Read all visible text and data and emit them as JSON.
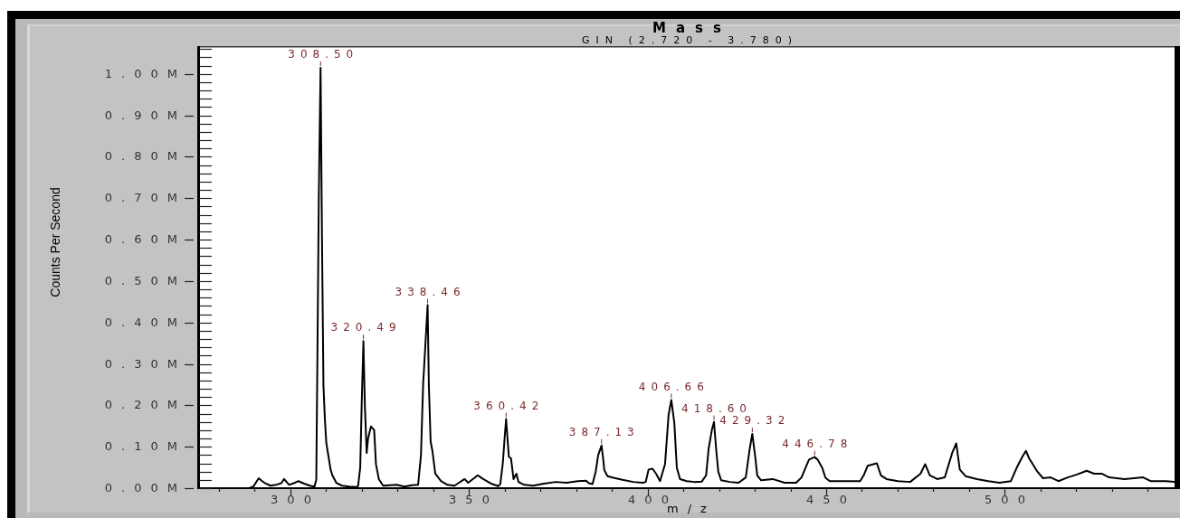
{
  "chart_data": {
    "type": "line",
    "title": "Mass",
    "subtitle": "GIN (2.720 - 3.780)",
    "xlabel": "m/z",
    "ylabel": "Counts Per Second",
    "x": [
      288.5,
      289.7,
      291.2,
      292.0,
      292.8,
      294.5,
      296.0,
      297.5,
      298.3,
      299.7,
      301.0,
      302.3,
      303.9,
      305.5,
      306.8,
      307.3,
      307.6,
      308.0,
      308.5,
      308.9,
      309.3,
      309.7,
      310.1,
      310.8,
      311.3,
      311.8,
      312.9,
      314.5,
      316.5,
      318.5,
      319.0,
      319.6,
      320.0,
      320.49,
      320.9,
      321.4,
      321.8,
      322.6,
      323.5,
      324.0,
      324.8,
      326.0,
      329.8,
      332.0,
      334.0,
      335.8,
      336.6,
      337.2,
      338.46,
      338.8,
      339.3,
      339.8,
      340.6,
      342.2,
      344.0,
      346.0,
      348.8,
      349.8,
      352.5,
      354.0,
      356.2,
      358.3,
      358.8,
      359.5,
      360.0,
      360.42,
      360.9,
      361.2,
      361.8,
      362.5,
      363.3,
      363.9,
      365.5,
      368.0,
      371.0,
      374.3,
      377.3,
      380.5,
      382.8,
      383.6,
      384.6,
      385.5,
      386.2,
      387.13,
      387.6,
      387.9,
      388.8,
      390.5,
      393.0,
      396.0,
      398.7,
      399.5,
      400.3,
      401.4,
      402.4,
      403.5,
      404.9,
      405.9,
      406.66,
      407.5,
      408.2,
      409.1,
      411.0,
      413.1,
      415.2,
      416.4,
      417.1,
      418.0,
      418.6,
      419.2,
      419.8,
      420.6,
      423.0,
      425.5,
      427.5,
      428.6,
      429.32,
      430.2,
      430.7,
      431.8,
      435.0,
      438.4,
      441.6,
      443.1,
      444.2,
      445.2,
      446.78,
      447.6,
      448.9,
      449.8,
      451.0,
      455.3,
      459.5,
      460.5,
      461.6,
      463.2,
      464.2,
      465.3,
      466.9,
      470.1,
      473.5,
      476.4,
      477.7,
      479.0,
      481.1,
      483.2,
      485.3,
      486.4,
      487.4,
      489.0,
      492.2,
      495.4,
      498.5,
      501.7,
      503.3,
      504.9,
      505.9,
      506.8,
      508.1,
      509.1,
      510.7,
      512.8,
      515.0,
      517.6,
      520.2,
      522.9,
      525.0,
      527.1,
      529.2,
      533.5,
      538.7,
      540.8,
      545.1,
      547.5
    ],
    "series": [
      {
        "color": "#000000",
        "values": [
          0,
          4000,
          24000,
          18000,
          13000,
          6000,
          8000,
          12000,
          22000,
          8000,
          12000,
          17000,
          11000,
          6000,
          4000,
          20000,
          300000,
          700000,
          1015000,
          600000,
          250000,
          167000,
          110000,
          72000,
          45000,
          31000,
          13000,
          6000,
          4000,
          3000,
          5000,
          50000,
          200000,
          355000,
          200000,
          85000,
          120000,
          149000,
          140000,
          58000,
          22000,
          6000,
          8000,
          4000,
          7000,
          8000,
          80000,
          250000,
          442000,
          250000,
          113000,
          90000,
          35000,
          17000,
          8000,
          6000,
          22000,
          13000,
          31000,
          22000,
          11000,
          5000,
          10000,
          60000,
          120000,
          167000,
          110000,
          76000,
          72000,
          22000,
          35000,
          15000,
          8000,
          6000,
          11000,
          15000,
          13000,
          17000,
          18000,
          12000,
          10000,
          40000,
          80000,
          103000,
          70000,
          44000,
          29000,
          25000,
          20000,
          15000,
          13000,
          15000,
          45000,
          47000,
          35000,
          17000,
          58000,
          177000,
          213000,
          158000,
          49000,
          22000,
          17000,
          15000,
          16000,
          31000,
          95000,
          140000,
          160000,
          95000,
          40000,
          19000,
          15000,
          13000,
          26000,
          95000,
          131000,
          72000,
          31000,
          19000,
          22000,
          13000,
          13000,
          26000,
          49000,
          69000,
          75000,
          69000,
          49000,
          25000,
          17000,
          17000,
          17000,
          31000,
          54000,
          58000,
          60000,
          31000,
          22000,
          17000,
          15000,
          35000,
          58000,
          31000,
          22000,
          26000,
          86000,
          108000,
          45000,
          29000,
          22000,
          17000,
          13000,
          17000,
          49000,
          76000,
          90000,
          72000,
          54000,
          40000,
          24000,
          26000,
          17000,
          26000,
          33000,
          42000,
          35000,
          35000,
          26000,
          22000,
          26000,
          17000,
          17000,
          15000
        ]
      }
    ],
    "xlim": [
      274.5,
      547.5
    ],
    "ylim": [
      0,
      1065000
    ],
    "xticks": [
      {
        "value": 280,
        "label": null
      },
      {
        "value": 290,
        "label": null
      },
      300,
      {
        "value": 310,
        "label": null
      },
      {
        "value": 320,
        "label": null
      },
      {
        "value": 330,
        "label": null
      },
      {
        "value": 340,
        "label": null
      },
      350,
      {
        "value": 360,
        "label": null
      },
      {
        "value": 370,
        "label": null
      },
      {
        "value": 380,
        "label": null
      },
      {
        "value": 390,
        "label": null
      },
      400,
      {
        "value": 410,
        "label": null
      },
      {
        "value": 420,
        "label": null
      },
      {
        "value": 430,
        "label": null
      },
      {
        "value": 440,
        "label": null
      },
      450,
      {
        "value": 460,
        "label": null
      },
      {
        "value": 470,
        "label": null
      },
      {
        "value": 480,
        "label": null
      },
      {
        "value": 490,
        "label": null
      },
      500,
      {
        "value": 510,
        "label": null
      },
      {
        "value": 520,
        "label": null
      },
      {
        "value": 530,
        "label": null
      },
      {
        "value": 540,
        "label": null
      }
    ],
    "yticks": [
      {
        "value": 0,
        "label": "0.00M"
      },
      {
        "value": 20000,
        "label": null
      },
      {
        "value": 40000,
        "label": null
      },
      {
        "value": 60000,
        "label": null
      },
      {
        "value": 80000,
        "label": null
      },
      {
        "value": 100000,
        "label": "0.10M"
      },
      {
        "value": 120000,
        "label": null
      },
      {
        "value": 140000,
        "label": null
      },
      {
        "value": 160000,
        "label": null
      },
      {
        "value": 180000,
        "label": null
      },
      {
        "value": 200000,
        "label": "0.20M"
      },
      {
        "value": 220000,
        "label": null
      },
      {
        "value": 240000,
        "label": null
      },
      {
        "value": 260000,
        "label": null
      },
      {
        "value": 280000,
        "label": null
      },
      {
        "value": 300000,
        "label": "0.30M"
      },
      {
        "value": 320000,
        "label": null
      },
      {
        "value": 340000,
        "label": null
      },
      {
        "value": 360000,
        "label": null
      },
      {
        "value": 380000,
        "label": null
      },
      {
        "value": 400000,
        "label": "0.40M"
      },
      {
        "value": 420000,
        "label": null
      },
      {
        "value": 440000,
        "label": null
      },
      {
        "value": 460000,
        "label": null
      },
      {
        "value": 480000,
        "label": null
      },
      {
        "value": 500000,
        "label": "0.50M"
      },
      {
        "value": 520000,
        "label": null
      },
      {
        "value": 540000,
        "label": null
      },
      {
        "value": 560000,
        "label": null
      },
      {
        "value": 580000,
        "label": null
      },
      {
        "value": 600000,
        "label": "0.60M"
      },
      {
        "value": 620000,
        "label": null
      },
      {
        "value": 640000,
        "label": null
      },
      {
        "value": 660000,
        "label": null
      },
      {
        "value": 680000,
        "label": null
      },
      {
        "value": 700000,
        "label": "0.70M"
      },
      {
        "value": 720000,
        "label": null
      },
      {
        "value": 740000,
        "label": null
      },
      {
        "value": 760000,
        "label": null
      },
      {
        "value": 780000,
        "label": null
      },
      {
        "value": 800000,
        "label": "0.80M"
      },
      {
        "value": 820000,
        "label": null
      },
      {
        "value": 840000,
        "label": null
      },
      {
        "value": 860000,
        "label": null
      },
      {
        "value": 880000,
        "label": null
      },
      {
        "value": 900000,
        "label": "0.90M"
      },
      {
        "value": 920000,
        "label": null
      },
      {
        "value": 940000,
        "label": null
      },
      {
        "value": 960000,
        "label": null
      },
      {
        "value": 980000,
        "label": null
      },
      {
        "value": 1000000,
        "label": "1.00M"
      },
      {
        "value": 1020000,
        "label": null
      },
      {
        "value": 1040000,
        "label": null
      },
      {
        "value": 1060000,
        "label": null
      }
    ],
    "annotations": [
      {
        "text": "308.50",
        "x": 308.5,
        "y": 1015000
      },
      {
        "text": "320.49",
        "x": 320.49,
        "y": 355000
      },
      {
        "text": "338.46",
        "x": 338.46,
        "y": 442000
      },
      {
        "text": "360.42",
        "x": 360.42,
        "y": 167000
      },
      {
        "text": "387.13",
        "x": 387.13,
        "y": 103000
      },
      {
        "text": "406.66",
        "x": 406.66,
        "y": 213000
      },
      {
        "text": "418.60",
        "x": 418.6,
        "y": 160000
      },
      {
        "text": "429.32",
        "x": 429.32,
        "y": 131000
      },
      {
        "text": "446.78",
        "x": 446.78,
        "y": 75000
      }
    ]
  }
}
